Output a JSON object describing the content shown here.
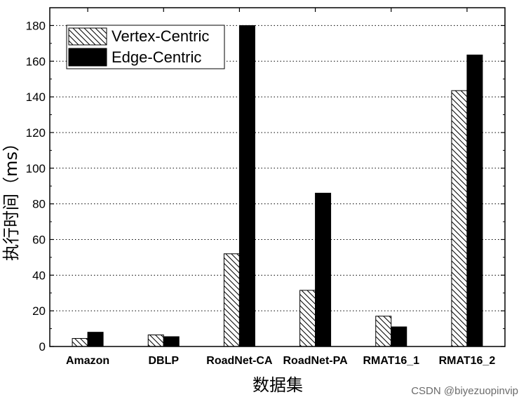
{
  "chart_data": {
    "type": "bar",
    "categories": [
      "Amazon",
      "DBLP",
      "RoadNet-CA",
      "RoadNet-PA",
      "RMAT16_1",
      "RMAT16_2"
    ],
    "series": [
      {
        "name": "Vertex-Centric",
        "values": [
          4.5,
          6.5,
          52,
          31.5,
          17,
          143.5
        ],
        "fill": "hatch"
      },
      {
        "name": "Edge-Centric",
        "values": [
          8,
          5.5,
          180,
          86,
          11,
          163.5
        ],
        "fill": "#000000"
      }
    ],
    "title": "",
    "xlabel": "数据集",
    "ylabel": "执行时间（ms）",
    "ylim": [
      0,
      190
    ],
    "yticks": [
      0,
      20,
      40,
      60,
      80,
      100,
      120,
      140,
      160,
      180
    ],
    "grid": "horizontal-dotted",
    "legend_position": "top-left"
  },
  "watermark": "CSDN @biyezuopinvip"
}
